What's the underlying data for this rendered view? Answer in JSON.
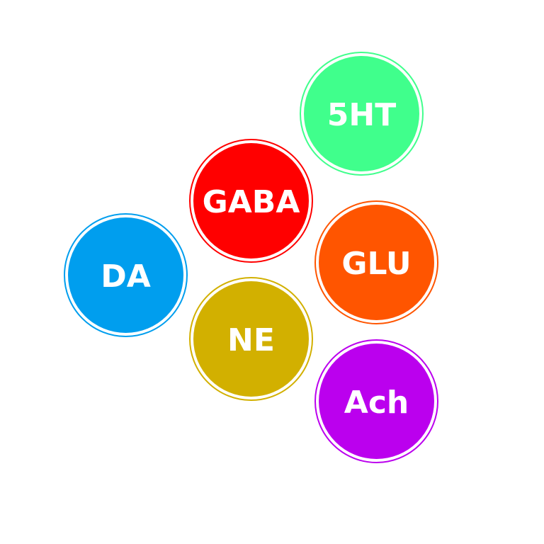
{
  "neurotransmitters": [
    {
      "label": "5HT",
      "color": "#40ff8c"
    },
    {
      "label": "GABA",
      "color": "#ff0000"
    },
    {
      "label": "GLU",
      "color": "#ff5500"
    },
    {
      "label": "DA",
      "color": "#009eee"
    },
    {
      "label": "NE",
      "color": "#d2b000"
    },
    {
      "label": "Ach",
      "color": "#bb00ee"
    }
  ]
}
